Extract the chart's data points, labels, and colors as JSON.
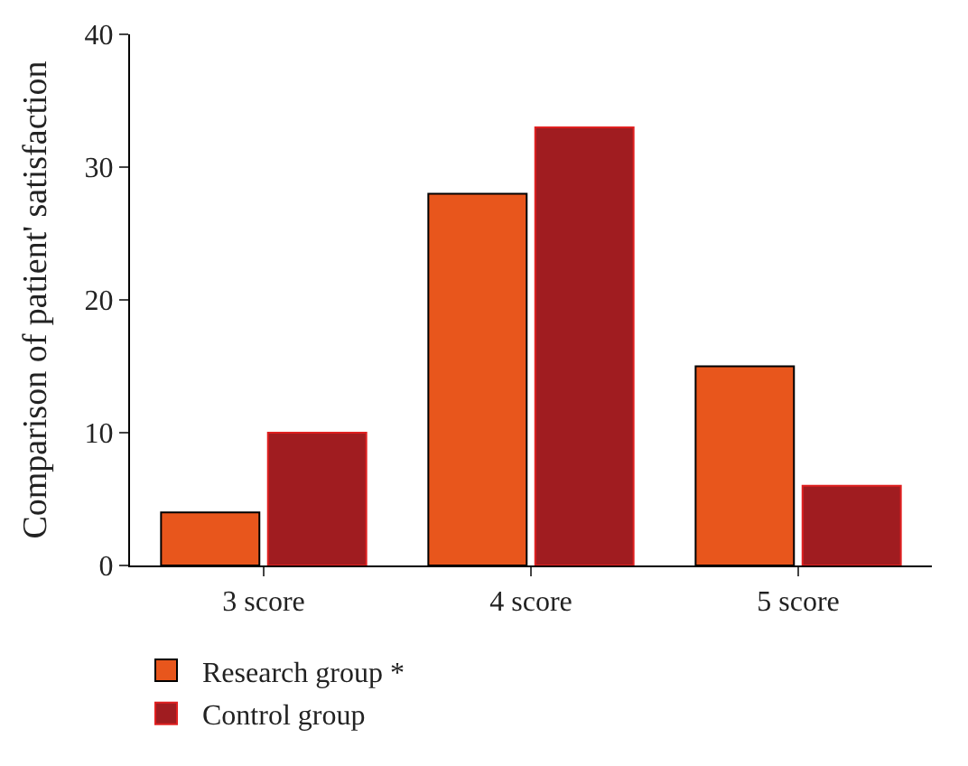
{
  "chart_data": {
    "type": "bar",
    "ylabel": "Comparison of patient' satisfaction",
    "categories": [
      "3 score",
      "4 score",
      "5 score"
    ],
    "series": [
      {
        "name": "Research group *",
        "color": "#e8561c",
        "values": [
          4,
          28,
          15
        ]
      },
      {
        "name": "Control group",
        "color": "#a01c20",
        "values": [
          10,
          33,
          6
        ]
      }
    ],
    "ylim": [
      0,
      40
    ],
    "yticks": [
      0,
      10,
      20,
      30,
      40
    ],
    "legend": "bottom"
  }
}
